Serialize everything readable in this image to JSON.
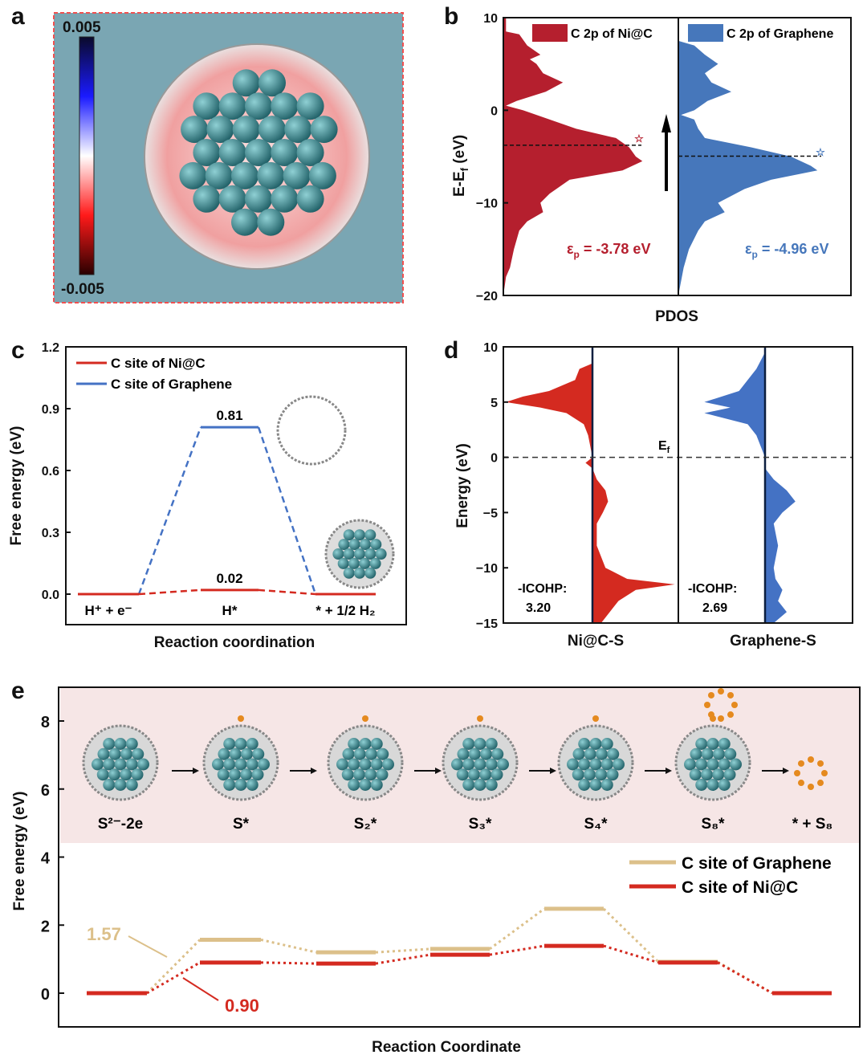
{
  "panels": {
    "a": "a",
    "b": "b",
    "c": "c",
    "d": "d",
    "e": "e"
  },
  "colors": {
    "red": "#b51f2e",
    "blue": "#4677bb",
    "line_red": "#d42a20",
    "line_blue": "#4472c4",
    "tan": "#dcc08a",
    "pink_band": "#f6e6e6",
    "cdd_bg": "#7aa6b3",
    "ni_atom": "#2f7f86"
  },
  "panel_a": {
    "colorbar_max": "0.005",
    "colorbar_min": "-0.005"
  },
  "chart_data": [
    {
      "panel": "b",
      "type": "area",
      "ylabel_main": "E-E",
      "ylabel_sub": "f",
      "ylabel_unit": " (eV)",
      "xlabel": "PDOS",
      "ylim": [
        -20,
        10
      ],
      "yticks": [
        "10",
        "0",
        "−10",
        "−20"
      ],
      "ytick_values": [
        10,
        0,
        -10,
        -20
      ],
      "legend": [
        {
          "name": "C 2p of Ni@C"
        },
        {
          "name": "C 2p of Graphene"
        }
      ],
      "series": [
        {
          "name": "C 2p of Ni@C",
          "eps_p": -3.78,
          "annotation_sym": "ε",
          "annotation_sub": "p",
          "annotation_val": " = -3.78 eV",
          "profile": [
            [
              10,
              0.02
            ],
            [
              8.5,
              0.02
            ],
            [
              8.2,
              0.12
            ],
            [
              7,
              0.18
            ],
            [
              6,
              0.28
            ],
            [
              5.5,
              0.2
            ],
            [
              5,
              0.25
            ],
            [
              4,
              0.3
            ],
            [
              3,
              0.45
            ],
            [
              2,
              0.32
            ],
            [
              1,
              0.1
            ],
            [
              0.5,
              0.02
            ],
            [
              0,
              0.15
            ],
            [
              -1,
              0.35
            ],
            [
              -2,
              0.55
            ],
            [
              -3,
              0.85
            ],
            [
              -4,
              0.95
            ],
            [
              -5,
              1.0
            ],
            [
              -5.5,
              1.05
            ],
            [
              -6.5,
              0.9
            ],
            [
              -7.5,
              0.5
            ],
            [
              -9,
              0.35
            ],
            [
              -10,
              0.28
            ],
            [
              -11,
              0.3
            ],
            [
              -12,
              0.18
            ],
            [
              -13,
              0.12
            ],
            [
              -15,
              0.08
            ],
            [
              -17,
              0.05
            ],
            [
              -18,
              0.02
            ],
            [
              -20,
              0
            ]
          ]
        },
        {
          "name": "C 2p of Graphene",
          "eps_p": -4.96,
          "annotation_sym": "ε",
          "annotation_sub": "p",
          "annotation_val": " = -4.96 eV",
          "profile": [
            [
              7.5,
              0
            ],
            [
              7,
              0.12
            ],
            [
              6,
              0.2
            ],
            [
              5,
              0.3
            ],
            [
              4,
              0.2
            ],
            [
              3,
              0.25
            ],
            [
              2,
              0.4
            ],
            [
              1,
              0.22
            ],
            [
              0,
              0.12
            ],
            [
              -0.5,
              0.02
            ],
            [
              -1,
              0.12
            ],
            [
              -2,
              0.15
            ],
            [
              -3,
              0.2
            ],
            [
              -4,
              0.55
            ],
            [
              -5,
              0.85
            ],
            [
              -6,
              1.0
            ],
            [
              -6.5,
              1.05
            ],
            [
              -7.5,
              0.7
            ],
            [
              -8.5,
              0.5
            ],
            [
              -10,
              0.3
            ],
            [
              -11,
              0.35
            ],
            [
              -12,
              0.2
            ],
            [
              -13,
              0.15
            ],
            [
              -15,
              0.08
            ],
            [
              -17,
              0.04
            ],
            [
              -20,
              0
            ]
          ]
        }
      ]
    },
    {
      "panel": "c",
      "type": "line",
      "ylabel": "Free energy (eV)",
      "xlabel": "Reaction coordination",
      "ylim": [
        0,
        1.2
      ],
      "yticks": [
        "0.0",
        "0.3",
        "0.6",
        "0.9",
        "1.2"
      ],
      "ytick_values": [
        0,
        0.3,
        0.6,
        0.9,
        1.2
      ],
      "categories": [
        "H⁺ + e⁻",
        "H*",
        "* + 1/2 H₂"
      ],
      "series": [
        {
          "name": "C site of Ni@C",
          "values": [
            0,
            0.02,
            0
          ],
          "label": "0.02"
        },
        {
          "name": "C site of Graphene",
          "values": [
            0,
            0.81,
            0
          ],
          "label": "0.81"
        }
      ]
    },
    {
      "panel": "d",
      "type": "area",
      "ylabel": "Energy (eV)",
      "ylim": [
        -15,
        10
      ],
      "yticks": [
        "10",
        "5",
        "0",
        "−5",
        "−10",
        "−15"
      ],
      "ytick_values": [
        10,
        5,
        0,
        -5,
        -10,
        -15
      ],
      "fermi_label_main": "E",
      "fermi_label_sub": "f",
      "categories": [
        "Ni@C-S",
        "Graphene-S"
      ],
      "series": [
        {
          "name": "Ni@C-S",
          "icohp_label": "-ICOHP:",
          "icohp_value": "3.20",
          "profile": [
            [
              8.5,
              0
            ],
            [
              8,
              -0.15
            ],
            [
              7,
              -0.2
            ],
            [
              6,
              -0.5
            ],
            [
              5.5,
              -0.8
            ],
            [
              5,
              -1
            ],
            [
              4.5,
              -0.6
            ],
            [
              4,
              -0.3
            ],
            [
              3,
              -0.1
            ],
            [
              2,
              -0.05
            ],
            [
              0,
              0
            ],
            [
              -0.5,
              -0.08
            ],
            [
              -1,
              0
            ],
            [
              -2,
              0.05
            ],
            [
              -3,
              0.15
            ],
            [
              -4,
              0.18
            ],
            [
              -5,
              0.12
            ],
            [
              -6,
              0.05
            ],
            [
              -8,
              0.05
            ],
            [
              -10,
              0.15
            ],
            [
              -11,
              0.4
            ],
            [
              -11.5,
              0.95
            ],
            [
              -12,
              0.5
            ],
            [
              -13,
              0.3
            ],
            [
              -14,
              0.2
            ],
            [
              -15,
              0.1
            ]
          ]
        },
        {
          "name": "Graphene-S",
          "icohp_label": "-ICOHP:",
          "icohp_value": "2.69",
          "profile": [
            [
              9.5,
              0
            ],
            [
              8,
              -0.1
            ],
            [
              6,
              -0.3
            ],
            [
              5,
              -0.7
            ],
            [
              4.5,
              -0.4
            ],
            [
              4,
              -0.7
            ],
            [
              3,
              -0.2
            ],
            [
              2,
              -0.1
            ],
            [
              0,
              0
            ],
            [
              -1,
              0
            ],
            [
              -2,
              0.1
            ],
            [
              -3,
              0.25
            ],
            [
              -4,
              0.35
            ],
            [
              -5,
              0.2
            ],
            [
              -6,
              0.1
            ],
            [
              -8,
              0.15
            ],
            [
              -10,
              0.1
            ],
            [
              -11,
              0.12
            ],
            [
              -12,
              0.2
            ],
            [
              -13,
              0.15
            ],
            [
              -14,
              0.25
            ],
            [
              -15,
              0.1
            ]
          ]
        }
      ]
    },
    {
      "panel": "e",
      "type": "line",
      "ylabel": "Free energy (eV)",
      "xlabel": "Reaction Coordinate",
      "ylim": [
        -1,
        9
      ],
      "yticks": [
        "0",
        "2",
        "4",
        "6",
        "8"
      ],
      "ytick_values": [
        0,
        2,
        4,
        6,
        8
      ],
      "categories": [
        "S²⁻-2e",
        "S*",
        "S₂*",
        "S₃*",
        "S₄*",
        "S₈*",
        "* + S₈"
      ],
      "series": [
        {
          "name": "C site of Graphene",
          "values": [
            0,
            1.57,
            1.2,
            1.3,
            2.48,
            0.92,
            0
          ],
          "annotation": "1.57"
        },
        {
          "name": "C site of Ni@C",
          "values": [
            0,
            0.9,
            0.87,
            1.13,
            1.39,
            0.9,
            0
          ],
          "annotation": "0.90"
        }
      ]
    }
  ]
}
